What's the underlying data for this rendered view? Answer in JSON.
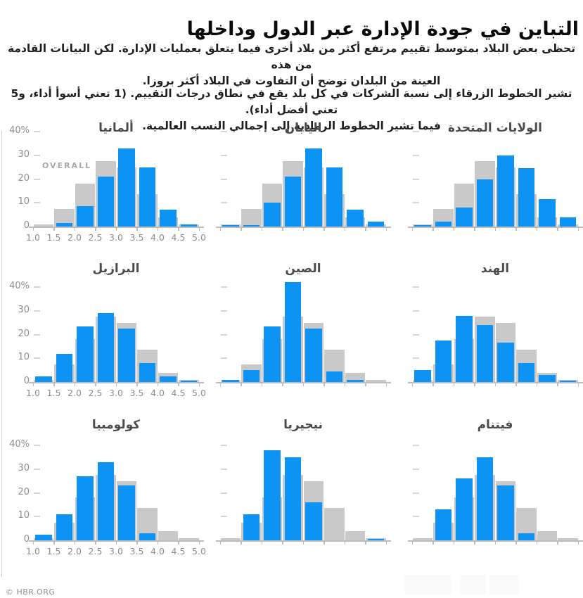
{
  "page": {
    "title": "التباين في جودة الإدارة عبر الدول وداخلها",
    "intro_p1": [
      "تحظى بعض البلاد بمتوسط تقييم مرتفع أكثر من بلاد أخرى فيما يتعلق بعمليات الإدارة. لكن البيانات القادمة من هذه",
      "العينة من البلدان توضح أن التفاوت في البلاد أكثر بروزا."
    ],
    "intro_p2": [
      "تشير الخطوط الزرقاء إلى نسبة الشركات في كل بلد يقع في نطاق درجات التقييم. (1 تعني أسوأ أداء، و5 تعني أفضل أداء).",
      "فيما تشير الخطوط الرمادية إلى إجمالي النسب العالمية."
    ],
    "footer_credit": "© HBR.ORG"
  },
  "colors": {
    "country_blue": "#0d93f3",
    "overall_gray": "#c9c9c9",
    "axis_gray": "#bdbdbd",
    "label_gray": "#8d8d8d"
  },
  "chart_data": {
    "type": "bar",
    "layout": "3x3 small multiples, overlaid histograms (blue = country, gray = overall)",
    "x_tick_labels": [
      "1.0",
      "1.5",
      "2.0",
      "2.5",
      "3.0",
      "3.5",
      "4.0",
      "4.5",
      "5.0"
    ],
    "y_tick_labels": [
      "40%",
      "30",
      "20",
      "10",
      "0"
    ],
    "y_tick_values": [
      40,
      30,
      20,
      10,
      0
    ],
    "ylim": [
      0,
      40
    ],
    "overall_label": "OVERALL",
    "overall_values": [
      1,
      7.5,
      18,
      27.5,
      25,
      13.5,
      4,
      0.75
    ],
    "countries": [
      {
        "id": "germany",
        "title": "ألمانيا",
        "values": [
          0,
          1.5,
          8.5,
          21,
          33,
          25,
          7,
          1
        ]
      },
      {
        "id": "japan",
        "title": "اليابان",
        "values": [
          0.5,
          0.5,
          10,
          21,
          33,
          25,
          7,
          2
        ]
      },
      {
        "id": "united-states",
        "title": "الولايات المتحدة",
        "values": [
          0.7,
          2,
          8,
          20,
          30,
          24.5,
          11.5,
          4
        ]
      },
      {
        "id": "brazil",
        "title": "البرازيل",
        "values": [
          2.5,
          12,
          23.5,
          29,
          22.5,
          8,
          2.5,
          0.5
        ]
      },
      {
        "id": "china",
        "title": "الصين",
        "values": [
          1,
          5,
          23.5,
          42,
          22.5,
          4.5,
          1,
          0
        ]
      },
      {
        "id": "india",
        "title": "الهند",
        "values": [
          5,
          17.5,
          28,
          24,
          16.5,
          8,
          3,
          0.5
        ]
      },
      {
        "id": "colombia",
        "title": "كولومبيا",
        "values": [
          2.5,
          11,
          27,
          33,
          23,
          3,
          0,
          0
        ]
      },
      {
        "id": "nigeria",
        "title": "نيجيريا",
        "values": [
          0,
          11,
          38,
          35,
          16,
          0,
          0,
          0.5
        ]
      },
      {
        "id": "vietnam",
        "title": "فيتنام",
        "values": [
          0,
          13,
          26,
          35,
          23,
          3,
          0,
          0
        ]
      }
    ]
  }
}
